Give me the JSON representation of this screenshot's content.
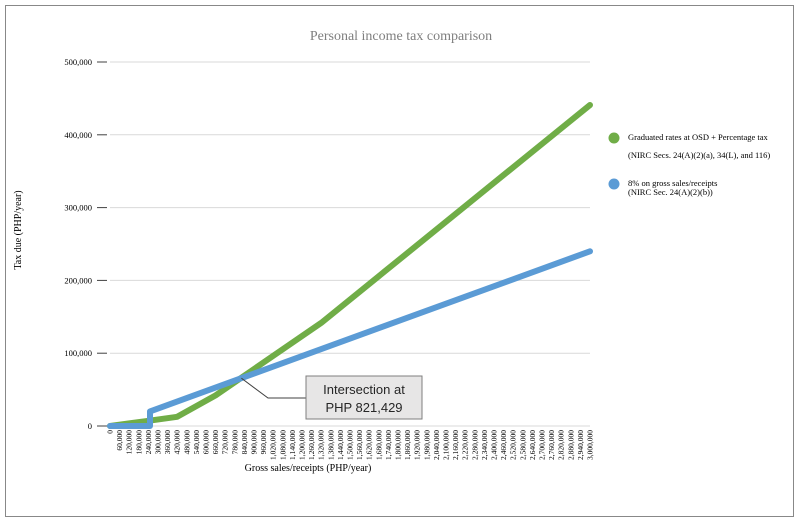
{
  "chart_data": {
    "type": "line",
    "title": "Personal income tax comparison",
    "xlabel": "Gross sales/receipts (PHP/year)",
    "ylabel": "Tax due (PHP/year)",
    "ylim": [
      0,
      500000
    ],
    "xlim": [
      0,
      3000000
    ],
    "grid": true,
    "legend_position": "right",
    "y_ticks": [
      {
        "value": 0,
        "label": "0"
      },
      {
        "value": 100000,
        "label": "100,000"
      },
      {
        "value": 200000,
        "label": "200,000"
      },
      {
        "value": 300000,
        "label": "300,000"
      },
      {
        "value": 400000,
        "label": "400,000"
      },
      {
        "value": 500000,
        "label": "500,000"
      }
    ],
    "x_tick_labels": [
      "0",
      "60,000",
      "120,000",
      "180,000",
      "240,000",
      "300,000",
      "360,000",
      "420,000",
      "480,000",
      "540,000",
      "600,000",
      "660,000",
      "720,000",
      "780,000",
      "840,000",
      "900,000",
      "960,000",
      "1,020,000",
      "1,080,000",
      "1,140,000",
      "1,200,000",
      "1,260,000",
      "1,320,000",
      "1,380,000",
      "1,440,000",
      "1,500,000",
      "1,560,000",
      "1,620,000",
      "1,680,000",
      "1,740,000",
      "1,800,000",
      "1,860,000",
      "1,920,000",
      "1,980,000",
      "2,040,000",
      "2,100,000",
      "2,160,000",
      "2,220,000",
      "2,280,000",
      "2,340,000",
      "2,400,000",
      "2,460,000",
      "2,520,000",
      "2,580,000",
      "2,640,000",
      "2,700,000",
      "2,760,000",
      "2,820,000",
      "2,880,000",
      "2,940,000",
      "3,000,000"
    ],
    "series": [
      {
        "name": "Graduated rates at OSD + Percentage tax",
        "name_line2": "(NIRC Secs. 24(A)(2)(a), 34(L), and 116)",
        "color": "#70ad47",
        "points": [
          {
            "x": 0,
            "y": 0
          },
          {
            "x": 240000,
            "y": 7200
          },
          {
            "x": 420000,
            "y": 12600
          },
          {
            "x": 660000,
            "y": 42000
          },
          {
            "x": 1320000,
            "y": 141600
          },
          {
            "x": 3000000,
            "y": 441000
          }
        ]
      },
      {
        "name": "8% on gross sales/receipts",
        "name_line2": "(NIRC Sec. 24(A)(2)(b))",
        "color": "#5b9bd5",
        "points": [
          {
            "x": 0,
            "y": 0
          },
          {
            "x": 250000,
            "y": 0
          },
          {
            "x": 250000,
            "y": 20000
          },
          {
            "x": 3000000,
            "y": 240000
          }
        ]
      }
    ],
    "annotation": {
      "line1": "Intersection at",
      "line2": "PHP 821,429",
      "x": 821429,
      "y": 65714
    }
  }
}
